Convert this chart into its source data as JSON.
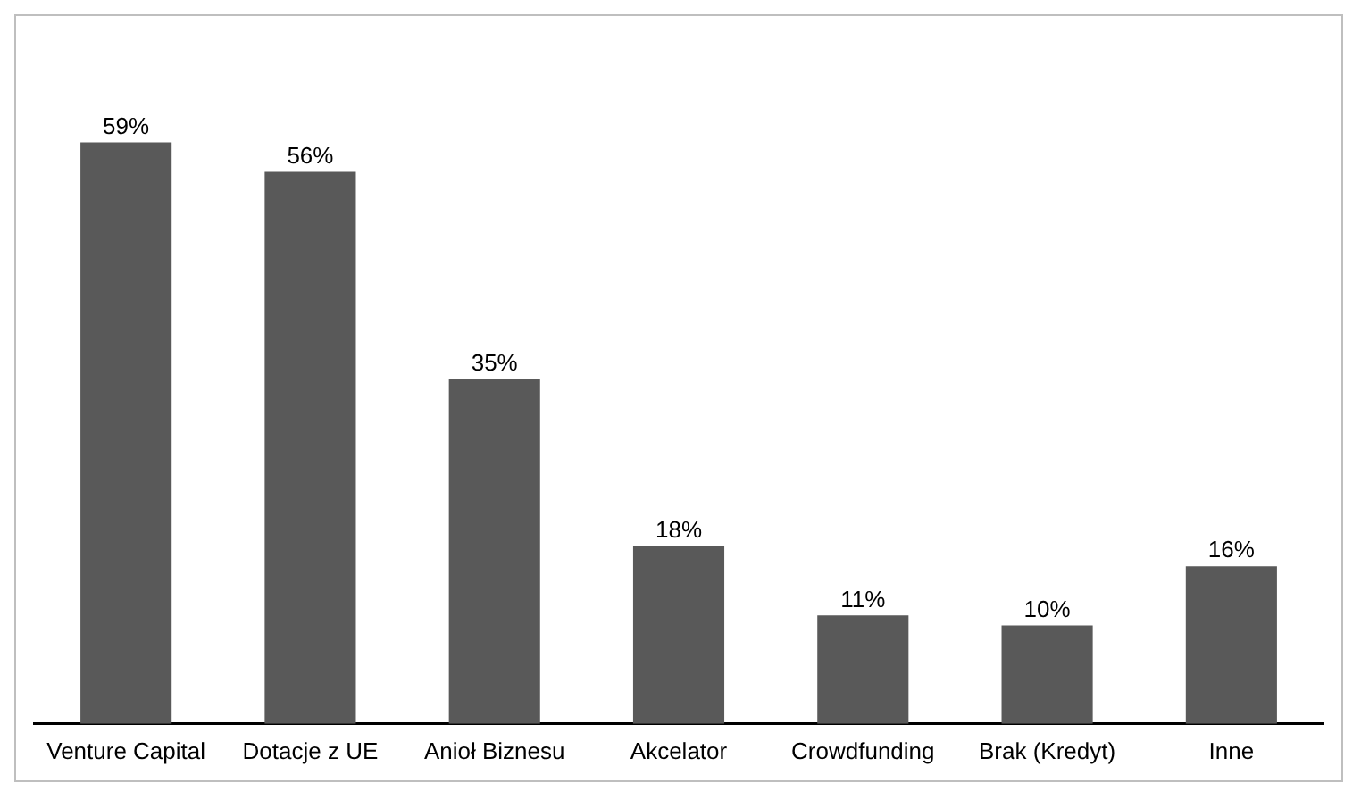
{
  "chart_data": {
    "type": "bar",
    "categories": [
      "Venture Capital",
      "Dotacje z UE",
      "Anioł Biznesu",
      "Akcelator",
      "Crowdfunding",
      "Brak (Kredyt)",
      "Inne"
    ],
    "values": [
      59,
      56,
      35,
      18,
      11,
      10,
      16
    ],
    "value_labels": [
      "59%",
      "56%",
      "35%",
      "18%",
      "11%",
      "10%",
      "16%"
    ],
    "color": "#595959",
    "tick_labels": "x"
  }
}
